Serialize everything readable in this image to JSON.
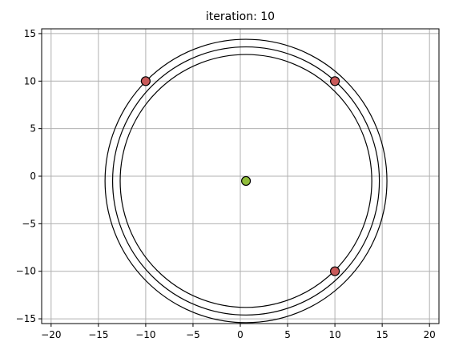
{
  "chart_data": {
    "type": "scatter",
    "title": "iteration: 10",
    "xlabel": "",
    "ylabel": "",
    "xlim": [
      -21,
      21
    ],
    "ylim": [
      -15.5,
      15.5
    ],
    "x_ticks": [
      -20,
      -15,
      -10,
      -5,
      0,
      5,
      10,
      15,
      20
    ],
    "y_ticks": [
      -15,
      -10,
      -5,
      0,
      5,
      10,
      15
    ],
    "grid": true,
    "points": [
      {
        "x": -10,
        "y": 10,
        "color": "#c85a5a"
      },
      {
        "x": 10,
        "y": 10,
        "color": "#c85a5a"
      },
      {
        "x": 10,
        "y": -10,
        "color": "#c85a5a"
      },
      {
        "x": 0.6,
        "y": -0.5,
        "color": "#8fbc3a"
      }
    ],
    "circles": [
      {
        "cx": 0.6,
        "cy": -0.5,
        "r": 13.3
      },
      {
        "cx": 0.6,
        "cy": -0.5,
        "r": 14.1
      },
      {
        "cx": 0.6,
        "cy": -0.5,
        "r": 14.9
      }
    ]
  }
}
